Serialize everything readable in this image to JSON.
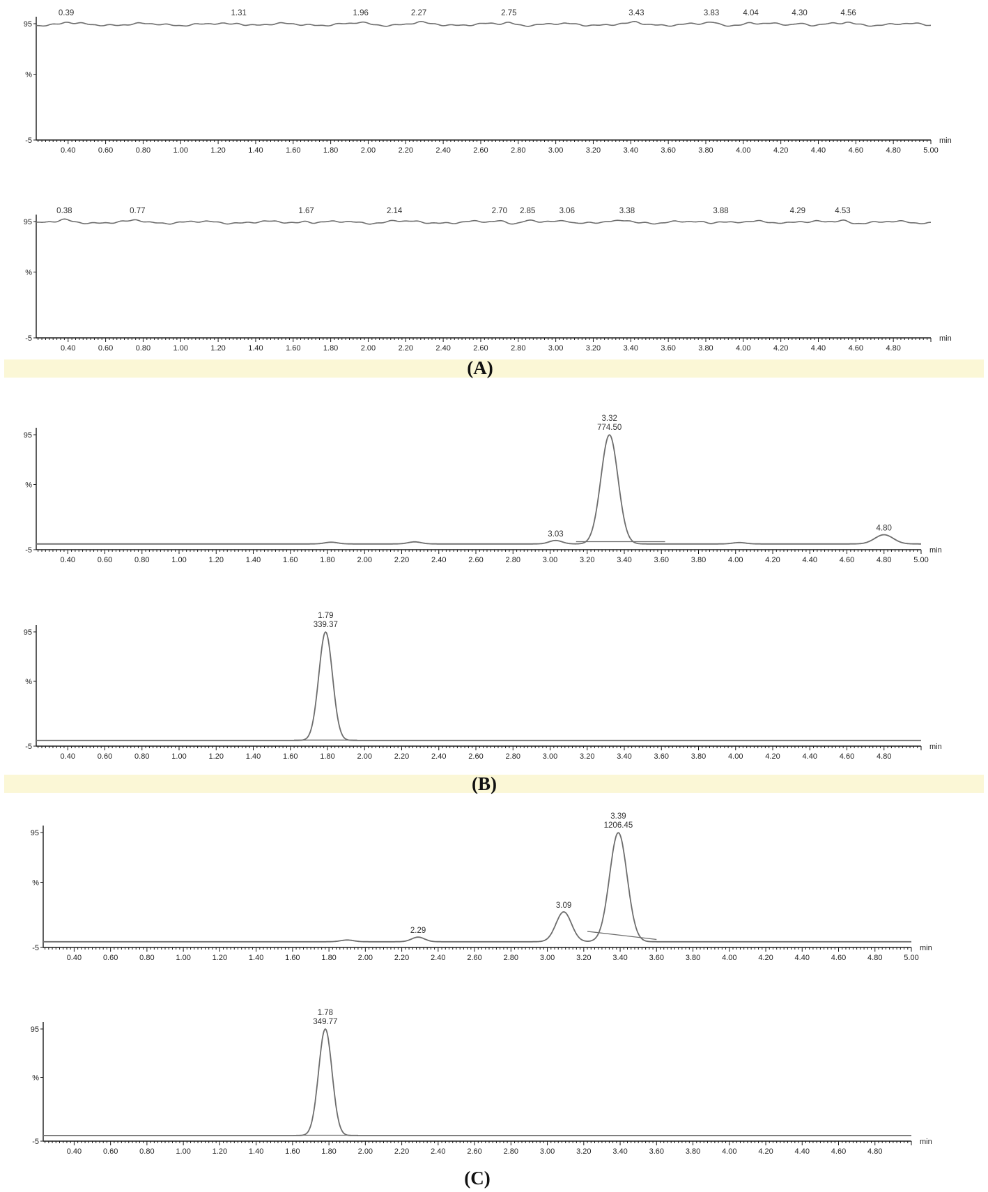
{
  "colors": {
    "trace": "#6d6d6d",
    "axis": "#1a1a1a",
    "band": "#fbf7d6",
    "text": "#222222"
  },
  "panel_labels": [
    "(A)",
    "(B)",
    "(C)"
  ],
  "axis_text": {
    "y_top": "95",
    "y_mid": "%",
    "y_bottom": "-5",
    "x_unit": "min"
  },
  "chart_data": [
    {
      "type": "line",
      "panel": "A",
      "trace": "noise",
      "xlim": [
        0.23,
        5.0
      ],
      "ylim": [
        -5,
        100
      ],
      "xticks": [
        "0.40",
        "0.60",
        "0.80",
        "1.00",
        "1.20",
        "1.40",
        "1.60",
        "1.80",
        "2.00",
        "2.20",
        "2.40",
        "2.60",
        "2.80",
        "3.00",
        "3.20",
        "3.40",
        "3.60",
        "3.80",
        "4.00",
        "4.20",
        "4.40",
        "4.60",
        "4.80",
        "5.00"
      ],
      "peaks": [
        {
          "x": 0.39,
          "label": "0.39"
        },
        {
          "x": 1.31,
          "label": "1.31"
        },
        {
          "x": 1.96,
          "label": "1.96"
        },
        {
          "x": 2.27,
          "label": "2.27"
        },
        {
          "x": 2.75,
          "label": "2.75"
        },
        {
          "x": 3.43,
          "label": "3.43"
        },
        {
          "x": 3.83,
          "label": "3.83"
        },
        {
          "x": 4.04,
          "label": "4.04"
        },
        {
          "x": 4.3,
          "label": "4.30"
        },
        {
          "x": 4.56,
          "label": "4.56"
        }
      ]
    },
    {
      "type": "line",
      "panel": "A",
      "trace": "noise",
      "xlim": [
        0.23,
        5.0
      ],
      "ylim": [
        -5,
        100
      ],
      "xticks": [
        "0.40",
        "0.60",
        "0.80",
        "1.00",
        "1.20",
        "1.40",
        "1.60",
        "1.80",
        "2.00",
        "2.20",
        "2.40",
        "2.60",
        "2.80",
        "3.00",
        "3.20",
        "3.40",
        "3.60",
        "3.80",
        "4.00",
        "4.20",
        "4.40",
        "4.60",
        "4.80"
      ],
      "peaks": [
        {
          "x": 0.38,
          "label": "0.38"
        },
        {
          "x": 0.77,
          "label": "0.77"
        },
        {
          "x": 1.67,
          "label": "1.67"
        },
        {
          "x": 2.14,
          "label": "2.14"
        },
        {
          "x": 2.7,
          "label": "2.70"
        },
        {
          "x": 2.85,
          "label": "2.85"
        },
        {
          "x": 3.06,
          "label": "3.06"
        },
        {
          "x": 3.38,
          "label": "3.38"
        },
        {
          "x": 3.88,
          "label": "3.88"
        },
        {
          "x": 4.29,
          "label": "4.29"
        },
        {
          "x": 4.53,
          "label": "4.53"
        }
      ]
    },
    {
      "type": "line",
      "panel": "B",
      "trace": "peaks",
      "xlim": [
        0.23,
        5.0
      ],
      "ylim": [
        -5,
        100
      ],
      "baseline": 0,
      "xticks": [
        "0.40",
        "0.60",
        "0.80",
        "1.00",
        "1.20",
        "1.40",
        "1.60",
        "1.80",
        "2.00",
        "2.20",
        "2.40",
        "2.60",
        "2.80",
        "3.00",
        "3.20",
        "3.40",
        "3.60",
        "3.80",
        "4.00",
        "4.20",
        "4.40",
        "4.60",
        "4.80",
        "5.00"
      ],
      "peaks": [
        {
          "x": 3.03,
          "height": 3,
          "width": 0.05,
          "label": "3.03"
        },
        {
          "x": 3.32,
          "height": 95,
          "width": 0.065,
          "label": "3.32",
          "area": "774.50"
        },
        {
          "x": 4.8,
          "height": 8,
          "width": 0.07,
          "label": "4.80"
        }
      ],
      "bumps": [
        {
          "x": 1.82,
          "height": 1.5,
          "width": 0.05
        },
        {
          "x": 2.27,
          "height": 1.8,
          "width": 0.05
        },
        {
          "x": 4.02,
          "height": 1.2,
          "width": 0.05
        }
      ],
      "integration": [
        {
          "x1": 3.14,
          "y1": 2,
          "x2": 3.62,
          "y2": 2
        }
      ]
    },
    {
      "type": "line",
      "panel": "B",
      "trace": "peaks",
      "xlim": [
        0.23,
        5.0
      ],
      "ylim": [
        -5,
        100
      ],
      "baseline": 0,
      "xticks": [
        "0.40",
        "0.60",
        "0.80",
        "1.00",
        "1.20",
        "1.40",
        "1.60",
        "1.80",
        "2.00",
        "2.20",
        "2.40",
        "2.60",
        "2.80",
        "3.00",
        "3.20",
        "3.40",
        "3.60",
        "3.80",
        "4.00",
        "4.20",
        "4.40",
        "4.60",
        "4.80"
      ],
      "peaks": [
        {
          "x": 1.79,
          "height": 95,
          "width": 0.052,
          "label": "1.79",
          "area": "339.37"
        }
      ],
      "bumps": [],
      "integration": [
        {
          "x1": 1.62,
          "y1": 0.3,
          "x2": 1.96,
          "y2": 0.3
        }
      ]
    },
    {
      "type": "line",
      "panel": "C",
      "trace": "peaks",
      "xlim": [
        0.23,
        5.0
      ],
      "ylim": [
        -5,
        100
      ],
      "baseline": 0,
      "xticks": [
        "0.40",
        "0.60",
        "0.80",
        "1.00",
        "1.20",
        "1.40",
        "1.60",
        "1.80",
        "2.00",
        "2.20",
        "2.40",
        "2.60",
        "2.80",
        "3.00",
        "3.20",
        "3.40",
        "3.60",
        "3.80",
        "4.00",
        "4.20",
        "4.40",
        "4.60",
        "4.80",
        "5.00"
      ],
      "peaks": [
        {
          "x": 2.29,
          "height": 4,
          "width": 0.05,
          "label": "2.29"
        },
        {
          "x": 3.09,
          "height": 26,
          "width": 0.06,
          "label": "3.09"
        },
        {
          "x": 3.39,
          "height": 95,
          "width": 0.068,
          "label": "3.39",
          "area": "1206.45"
        }
      ],
      "bumps": [
        {
          "x": 1.9,
          "height": 1.5,
          "width": 0.05
        }
      ],
      "integration": [
        {
          "x1": 3.22,
          "y1": 9,
          "x2": 3.6,
          "y2": 2
        }
      ]
    },
    {
      "type": "line",
      "panel": "C",
      "trace": "peaks",
      "xlim": [
        0.23,
        5.0
      ],
      "ylim": [
        -5,
        100
      ],
      "baseline": 0,
      "xticks": [
        "0.40",
        "0.60",
        "0.80",
        "1.00",
        "1.20",
        "1.40",
        "1.60",
        "1.80",
        "2.00",
        "2.20",
        "2.40",
        "2.60",
        "2.80",
        "3.00",
        "3.20",
        "3.40",
        "3.60",
        "3.80",
        "4.00",
        "4.20",
        "4.40",
        "4.60",
        "4.80"
      ],
      "peaks": [
        {
          "x": 1.78,
          "height": 95,
          "width": 0.052,
          "label": "1.78",
          "area": "349.77"
        }
      ],
      "bumps": [],
      "integration": [
        {
          "x1": 1.62,
          "y1": 0.3,
          "x2": 1.96,
          "y2": 0.3
        }
      ]
    }
  ]
}
